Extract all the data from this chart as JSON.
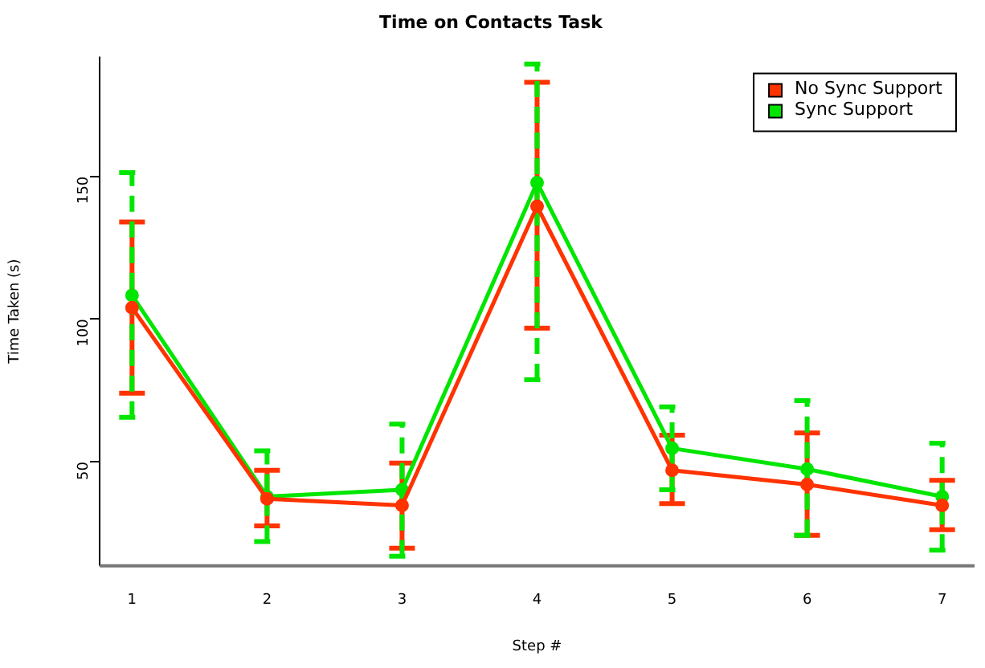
{
  "chart_data": {
    "type": "line",
    "title": "Time on Contacts Task",
    "xlabel": "Step #",
    "ylabel": "Time Taken (s)",
    "x": [
      1,
      2,
      3,
      4,
      5,
      6,
      7
    ],
    "xlim": [
      0.76,
      7.24
    ],
    "xticks": [
      1,
      2,
      3,
      4,
      5,
      6,
      7
    ],
    "ylim": [
      13.5,
      192
    ],
    "yticks": [
      50,
      100,
      150
    ],
    "series": [
      {
        "name": "No Sync Support",
        "color": "#ff3300",
        "values": [
          104,
          37,
          34.7,
          139.5,
          47,
          42,
          34.7
        ],
        "errors": [
          [
            74,
            134
          ],
          [
            27.5,
            47
          ],
          [
            19.7,
            49.5
          ],
          [
            96.8,
            183
          ],
          [
            35.3,
            59.3
          ],
          [
            24.2,
            60.1
          ],
          [
            26.2,
            43.5
          ]
        ]
      },
      {
        "name": "Sync Support",
        "color": "#00e600",
        "values": [
          108.3,
          37.8,
          40.2,
          147.8,
          54.7,
          47.4,
          37.8
        ],
        "errors": [
          [
            65.6,
            151.3
          ],
          [
            22,
            53.8
          ],
          [
            16.9,
            63.2
          ],
          [
            78.7,
            189.4
          ],
          [
            40.2,
            69.2
          ],
          [
            24.2,
            71.4
          ],
          [
            19,
            56.5
          ]
        ]
      }
    ],
    "marker": "circle",
    "line_style": "solid",
    "grid": false,
    "legend": "top right"
  }
}
